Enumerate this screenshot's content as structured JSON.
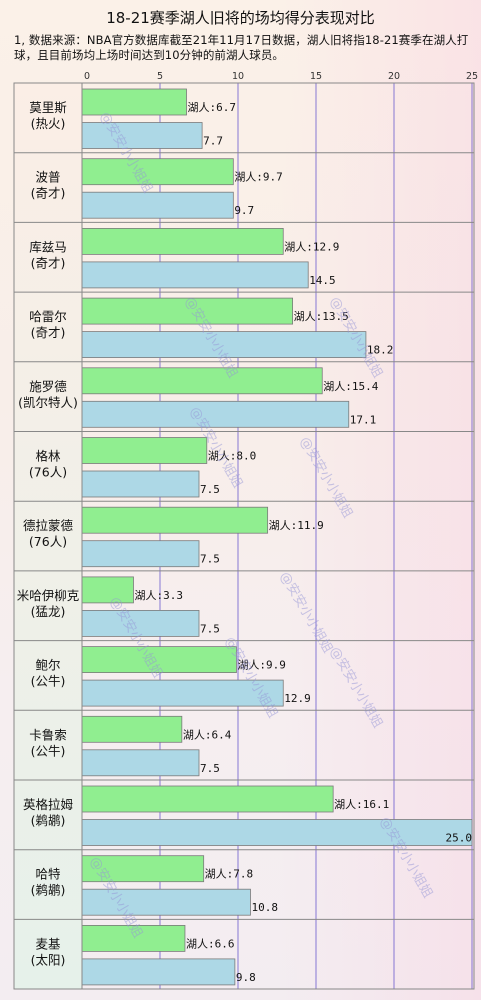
{
  "title": "18-21赛季湖人旧将的场均得分表现对比",
  "note": "1, 数据来源：NBA官方数据库截至21年11月17日数据，湖人旧将指18-21赛季在湖人打球，且目前场均上场时间达到10分钟的前湖人球员。",
  "watermark": "@安安小小姐姐",
  "colors": {
    "lakers_bar": "#90ee90",
    "current_bar": "#add8e6",
    "frame": "#888888",
    "gridline": "#6a5acd"
  },
  "chart_data": {
    "type": "bar",
    "orientation": "horizontal",
    "xlim": [
      0,
      25
    ],
    "xticks": [
      0,
      5,
      10,
      15,
      20,
      25
    ],
    "grid": true,
    "categories": [
      {
        "name": "莫里斯",
        "team": "(热火)"
      },
      {
        "name": "波普",
        "team": "(奇才)"
      },
      {
        "name": "库兹马",
        "team": "(奇才)"
      },
      {
        "name": "哈雷尔",
        "team": "(奇才)"
      },
      {
        "name": "施罗德",
        "team": "(凯尔特人)"
      },
      {
        "name": "格林",
        "team": "(76人)"
      },
      {
        "name": "德拉蒙德",
        "team": "(76人)"
      },
      {
        "name": "米哈伊柳克",
        "team": "(猛龙)"
      },
      {
        "name": "鲍尔",
        "team": "(公牛)"
      },
      {
        "name": "卡鲁索",
        "team": "(公牛)"
      },
      {
        "name": "英格拉姆",
        "team": "(鹈鹕)"
      },
      {
        "name": "哈特",
        "team": "(鹈鹕)"
      },
      {
        "name": "麦基",
        "team": "(太阳)"
      }
    ],
    "series": [
      {
        "name": "湖人",
        "label_prefix": "湖人:",
        "values": [
          6.7,
          9.7,
          12.9,
          13.5,
          15.4,
          8.0,
          11.9,
          3.3,
          9.9,
          6.4,
          16.1,
          7.8,
          6.6
        ]
      },
      {
        "label_prefix": "",
        "values": [
          7.7,
          9.7,
          14.5,
          18.2,
          17.1,
          7.5,
          7.5,
          7.5,
          12.9,
          7.5,
          25.0,
          10.8,
          9.8
        ]
      }
    ]
  }
}
